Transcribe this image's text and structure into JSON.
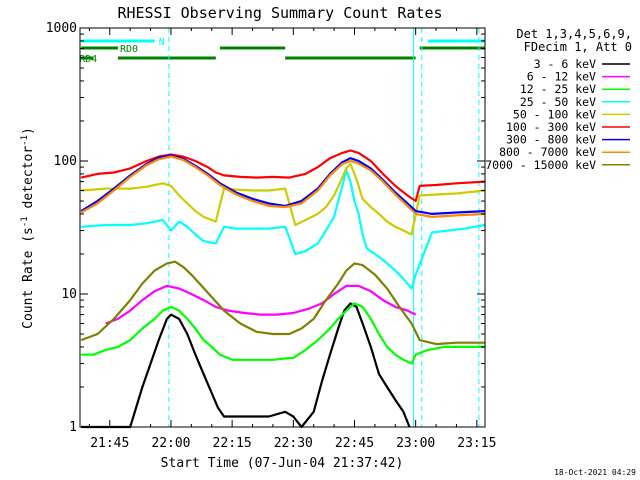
{
  "chart_data": {
    "type": "line",
    "title": "RHESSI Observing Summary Count Rates",
    "xlabel": "Start Time (07-Jun-04 21:37:42)",
    "ylabel_main": "Count Rate (s",
    "ylabel_sup1": "-1",
    "ylabel_mid": " detector",
    "ylabel_sup2": "-1",
    "ylabel_end": ")",
    "y_scale": "log",
    "ylim": [
      1,
      1000
    ],
    "xlim_minutes": [
      37.7,
      137.0
    ],
    "x_unit": "minutes after 21:00 UT",
    "x_ticks": [
      {
        "m": 45,
        "label": "21:45"
      },
      {
        "m": 60,
        "label": "22:00"
      },
      {
        "m": 75,
        "label": "22:15"
      },
      {
        "m": 90,
        "label": "22:30"
      },
      {
        "m": 105,
        "label": "22:45"
      },
      {
        "m": 120,
        "label": "23:00"
      },
      {
        "m": 135,
        "label": "23:15"
      }
    ],
    "y_ticks": [
      {
        "v": 1,
        "label": "1"
      },
      {
        "v": 10,
        "label": "10"
      },
      {
        "v": 100,
        "label": "100"
      },
      {
        "v": 1000,
        "label": "1000"
      }
    ],
    "legend": {
      "header_1": "Det 1,3,4,5,6,9,",
      "header_2": "FDecim 1, Att 0",
      "position": "right"
    },
    "series": [
      {
        "name": "3 - 6 keV",
        "color": "#000000",
        "x": [
          38,
          44,
          47,
          50,
          53,
          55,
          57,
          59,
          60,
          62,
          64,
          66,
          68,
          70,
          71.5,
          73,
          76,
          80,
          84,
          88,
          90,
          92,
          95,
          97,
          99,
          101,
          102.5,
          104,
          105.5,
          107,
          109,
          111,
          113,
          115,
          117,
          118.5
        ],
        "y": [
          1.0,
          1.0,
          1.0,
          1.0,
          2.0,
          3.0,
          4.5,
          6.5,
          7.0,
          6.5,
          5.0,
          3.5,
          2.5,
          1.8,
          1.4,
          1.2,
          1.2,
          1.2,
          1.2,
          1.3,
          1.2,
          1.0,
          1.3,
          2.2,
          3.5,
          5.5,
          7.5,
          8.5,
          8.0,
          6.0,
          4.0,
          2.5,
          2.0,
          1.6,
          1.3,
          1.0
        ]
      },
      {
        "name": "6 - 12 keV",
        "color": "#ff00ff",
        "x": [
          44,
          47,
          50,
          53,
          56,
          59,
          62,
          65,
          68,
          71,
          74,
          78,
          82,
          86,
          90,
          94,
          97,
          100,
          103,
          106,
          109,
          112,
          115,
          118,
          120
        ],
        "y": [
          6.0,
          6.5,
          7.5,
          9.0,
          10.5,
          11.5,
          11.0,
          10.0,
          9.0,
          8.0,
          7.5,
          7.2,
          7.0,
          7.0,
          7.2,
          7.8,
          8.5,
          10.0,
          11.5,
          11.5,
          10.5,
          9.0,
          8.0,
          7.5,
          7.0
        ]
      },
      {
        "name": "12 - 25 keV",
        "color": "#00ff00",
        "x": [
          38,
          41,
          44,
          47,
          50,
          53,
          56,
          58,
          60,
          62,
          64,
          66,
          68,
          70,
          72,
          75,
          80,
          85,
          89,
          90,
          93,
          96,
          99,
          101,
          103,
          105,
          107,
          109,
          111,
          113,
          115,
          117,
          119,
          120,
          123,
          127,
          131,
          135,
          137
        ],
        "y": [
          3.5,
          3.5,
          3.8,
          4.0,
          4.5,
          5.5,
          6.5,
          7.5,
          8.0,
          7.5,
          6.5,
          5.5,
          4.5,
          4.0,
          3.5,
          3.2,
          3.2,
          3.2,
          3.3,
          3.3,
          3.8,
          4.5,
          5.5,
          6.5,
          7.5,
          8.5,
          8.0,
          6.5,
          5.0,
          4.0,
          3.5,
          3.2,
          3.0,
          3.5,
          3.8,
          4.0,
          4.0,
          4.0,
          4.0
        ]
      },
      {
        "name": "25 - 50 keV",
        "color": "#00ffff",
        "x": [
          38,
          44,
          50,
          54,
          56,
          58,
          60,
          62,
          64,
          66,
          68,
          71,
          73,
          76,
          80,
          84,
          88,
          90.5,
          93,
          96,
          98,
          100,
          101,
          102,
          103,
          104,
          105,
          106,
          107,
          108,
          110,
          112,
          114,
          116,
          118,
          119,
          120,
          124,
          128,
          132,
          137
        ],
        "y": [
          32,
          33,
          33,
          34,
          35,
          36,
          30,
          35,
          32,
          28,
          25,
          24,
          32,
          31,
          31,
          31,
          32,
          20,
          21,
          24,
          30,
          38,
          50,
          65,
          85,
          70,
          50,
          40,
          28,
          22,
          20,
          18,
          16,
          14,
          12,
          11,
          14,
          29,
          30,
          31,
          33
        ]
      },
      {
        "name": "50 - 100 keV",
        "color": "#cccc00",
        "x": [
          38,
          44,
          50,
          54,
          56,
          58,
          60,
          62,
          64,
          66,
          68,
          71,
          73,
          76,
          80,
          84,
          88,
          90.5,
          93,
          96,
          98,
          100,
          102,
          103,
          104,
          105,
          106,
          107,
          109,
          111,
          113,
          115,
          117,
          119,
          121,
          125,
          130,
          137
        ],
        "y": [
          60,
          62,
          62,
          64,
          66,
          68,
          65,
          55,
          48,
          42,
          38,
          35,
          62,
          61,
          60,
          60,
          62,
          33,
          36,
          40,
          45,
          55,
          75,
          88,
          95,
          80,
          65,
          52,
          45,
          40,
          35,
          32,
          30,
          28,
          55,
          56,
          57,
          60
        ]
      },
      {
        "name": "100 - 300 keV",
        "color": "#ff0000",
        "x": [
          38,
          42,
          46,
          50,
          54,
          57,
          60,
          63,
          66,
          69,
          71,
          73,
          77,
          81,
          85,
          89,
          93,
          96,
          99,
          102,
          104,
          106,
          109,
          112,
          115,
          118,
          120,
          121,
          125,
          130,
          137
        ],
        "y": [
          75,
          80,
          82,
          88,
          100,
          108,
          112,
          108,
          100,
          90,
          82,
          78,
          76,
          75,
          76,
          75,
          80,
          90,
          105,
          115,
          120,
          115,
          100,
          80,
          65,
          55,
          50,
          65,
          66,
          68,
          70
        ]
      },
      {
        "name": "300 - 800 keV",
        "color": "#0000ff",
        "x": [
          38,
          42,
          46,
          50,
          54,
          57,
          60,
          63,
          66,
          69,
          72,
          76,
          80,
          84,
          88,
          92,
          96,
          99,
          102,
          104,
          106,
          109,
          112,
          115,
          118,
          120,
          124,
          130,
          137
        ],
        "y": [
          42,
          50,
          62,
          78,
          95,
          106,
          110,
          104,
          92,
          80,
          68,
          58,
          52,
          48,
          46,
          50,
          62,
          80,
          98,
          105,
          100,
          88,
          72,
          58,
          48,
          42,
          40,
          41,
          42
        ]
      },
      {
        "name": "800 - 7000 keV",
        "color": "#ff8800",
        "x": [
          38,
          42,
          46,
          50,
          54,
          57,
          60,
          63,
          66,
          69,
          72,
          76,
          80,
          84,
          88,
          92,
          96,
          99,
          102,
          104,
          106,
          109,
          112,
          115,
          118,
          120,
          124,
          130,
          137
        ],
        "y": [
          41,
          48,
          60,
          76,
          93,
          103,
          108,
          102,
          90,
          78,
          66,
          56,
          50,
          46,
          45,
          48,
          60,
          78,
          95,
          100,
          96,
          85,
          70,
          56,
          46,
          40,
          38,
          39,
          40
        ]
      },
      {
        "name": "7000 - 15000 keV",
        "color": "#808000",
        "x": [
          38,
          42,
          46,
          50,
          53,
          56,
          59,
          61,
          63,
          65,
          67,
          70,
          73,
          77,
          81,
          85,
          89,
          92,
          95,
          98,
          101,
          103,
          105,
          107,
          110,
          113,
          116,
          119,
          121,
          125,
          130,
          137
        ],
        "y": [
          4.5,
          5.0,
          6.5,
          9.0,
          12.0,
          15.0,
          17.0,
          17.5,
          16.0,
          14.0,
          12.0,
          9.5,
          7.5,
          6.0,
          5.2,
          5.0,
          5.0,
          5.5,
          6.5,
          9.0,
          12.0,
          15.0,
          17.0,
          16.5,
          14.0,
          11.0,
          8.0,
          6.0,
          4.5,
          4.2,
          4.3,
          4.3
        ]
      }
    ],
    "intervals": [
      {
        "label": "N",
        "color": "#00ffff",
        "segments": [
          [
            38,
            56
          ],
          [
            123,
            137
          ]
        ]
      },
      {
        "label": "RD0",
        "color": "#008000",
        "segments": [
          [
            38,
            47
          ],
          [
            72,
            88
          ],
          [
            121,
            137
          ]
        ]
      },
      {
        "label": "RD4",
        "color": "#008000",
        "segments": [
          [
            38,
            41
          ],
          [
            47,
            71
          ],
          [
            88,
            120
          ]
        ]
      }
    ],
    "markers": [
      {
        "m": 59.5,
        "color": "#00ffff",
        "style": "dashed"
      },
      {
        "m": 135.5,
        "color": "#00ffff",
        "style": "dashed"
      },
      {
        "m": 119.5,
        "color": "#00ffff",
        "style": "solid"
      },
      {
        "m": 121.5,
        "color": "#00ffff",
        "style": "dashed"
      }
    ],
    "footer_stamp": "18-Oct-2021 04:29"
  }
}
